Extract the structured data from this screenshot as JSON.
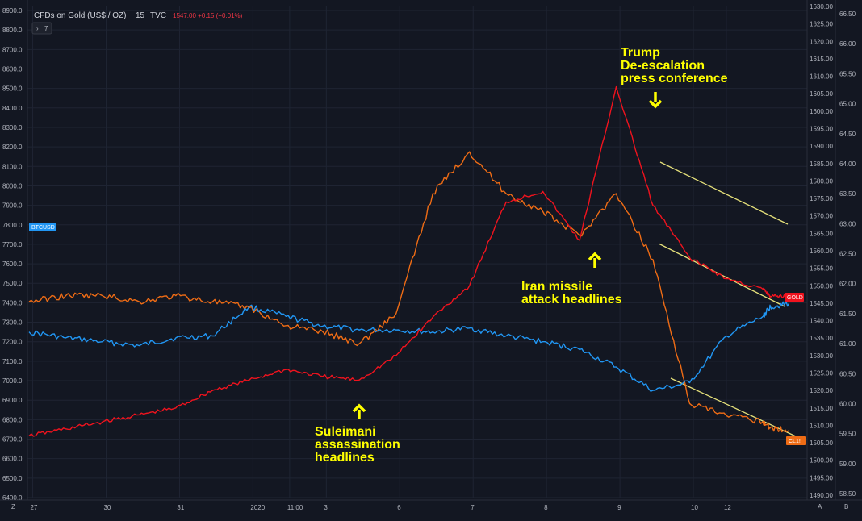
{
  "header": {
    "symbol": "CFDs on Gold (US$ / OZ)",
    "interval": "15",
    "source": "TVC",
    "quote": "1547.00 +0.15 (+0.01%)",
    "collapse_count": "7"
  },
  "colors": {
    "background": "#131722",
    "grid": "#1f2433",
    "btc": "#2196f3",
    "gold": "#f0131e",
    "oil": "#ef6c15",
    "annotation": "#ffff00",
    "trendline": "#e5e07a"
  },
  "chart_data": {
    "type": "line",
    "x_labels": [
      "27",
      "30",
      "31",
      "2020",
      "11:00",
      "3",
      "6",
      "7",
      "8",
      "9",
      "10",
      "12"
    ],
    "y_left": {
      "range": [
        6400,
        8900
      ],
      "ticks": [
        "8900.0",
        "8800.0",
        "8700.0",
        "8600.0",
        "8500.0",
        "8400.0",
        "8300.0",
        "8200.0",
        "8100.0",
        "8000.0",
        "7900.0",
        "7800.0",
        "7700.0",
        "7600.0",
        "7500.0",
        "7400.0",
        "7300.0",
        "7200.0",
        "7100.0",
        "7000.0",
        "6900.0",
        "6800.0",
        "6700.0",
        "6600.0",
        "6500.0",
        "6400.0"
      ]
    },
    "y_mid": {
      "range": [
        1490,
        1630
      ],
      "ticks": [
        "1630.00",
        "1625.00",
        "1620.00",
        "1615.00",
        "1610.00",
        "1605.00",
        "1600.00",
        "1595.00",
        "1590.00",
        "1585.00",
        "1580.00",
        "1575.00",
        "1570.00",
        "1565.00",
        "1560.00",
        "1555.00",
        "1550.00",
        "1545.00",
        "1540.00",
        "1535.00",
        "1530.00",
        "1525.00",
        "1520.00",
        "1515.00",
        "1510.00",
        "1505.00",
        "1500.00",
        "1495.00",
        "1490.00"
      ]
    },
    "y_right": {
      "range": [
        58.5,
        66.5
      ],
      "ticks": [
        "66.50",
        "66.00",
        "65.50",
        "65.00",
        "64.50",
        "64.00",
        "63.50",
        "63.00",
        "62.50",
        "62.00",
        "61.50",
        "61.00",
        "60.50",
        "60.00",
        "59.50",
        "59.00",
        "58.50"
      ]
    },
    "series": [
      {
        "name": "BTCUSD",
        "axis": "left",
        "x": [
          0,
          0.5,
          1,
          1.5,
          2,
          2.5,
          3,
          3.5,
          4,
          4.5,
          5,
          5.5,
          6,
          6.5,
          7,
          7.5,
          8,
          8.5,
          9,
          9.5,
          10,
          10.1,
          10.35
        ],
        "values": [
          7250,
          7220,
          7200,
          7180,
          7220,
          7230,
          7380,
          7330,
          7280,
          7260,
          7260,
          7250,
          7270,
          7230,
          7200,
          7160,
          7070,
          6950,
          6990,
          7230,
          7330,
          7380,
          7395
        ]
      },
      {
        "name": "GOLD",
        "axis": "mid",
        "x": [
          0,
          0.5,
          1,
          1.5,
          2,
          2.5,
          3,
          3.5,
          4,
          4.5,
          5,
          5.5,
          6,
          6.5,
          7,
          7.5,
          8,
          8.5,
          9,
          9.5,
          10,
          10.1,
          10.35
        ],
        "values": [
          1507,
          1509,
          1511,
          1513,
          1515,
          1520,
          1523,
          1526,
          1524,
          1523,
          1530,
          1541,
          1550,
          1574,
          1577,
          1563,
          1607,
          1573,
          1558,
          1552,
          1549,
          1547,
          1547
        ]
      },
      {
        "name": "CL1!",
        "axis": "right",
        "x": [
          0,
          0.5,
          1,
          1.5,
          2,
          2.5,
          3,
          3.5,
          4,
          4.5,
          5,
          5.5,
          6,
          6.5,
          7,
          7.5,
          8,
          8.5,
          9,
          9.5,
          10,
          10.1,
          10.35
        ],
        "values": [
          61.7,
          61.8,
          61.8,
          61.7,
          61.8,
          61.7,
          61.6,
          61.3,
          61.2,
          61.0,
          61.5,
          63.5,
          64.2,
          63.5,
          63.2,
          62.8,
          63.5,
          62.4,
          60.0,
          59.8,
          59.7,
          59.6,
          59.55
        ]
      }
    ],
    "series_badges": [
      "BTCUSD",
      "GOLD",
      "CL1!"
    ],
    "annotations": [
      {
        "lines": [
          "Suleimani",
          "assassination",
          "headlines"
        ]
      },
      {
        "lines": [
          "Iran missile",
          "attack headlines"
        ]
      },
      {
        "lines": [
          "Trump",
          "De-escalation",
          "press conference"
        ]
      }
    ],
    "grid": true
  },
  "bottom_axis_buttons": {
    "left": "Z",
    "right_a": "A",
    "right_b": "B"
  }
}
